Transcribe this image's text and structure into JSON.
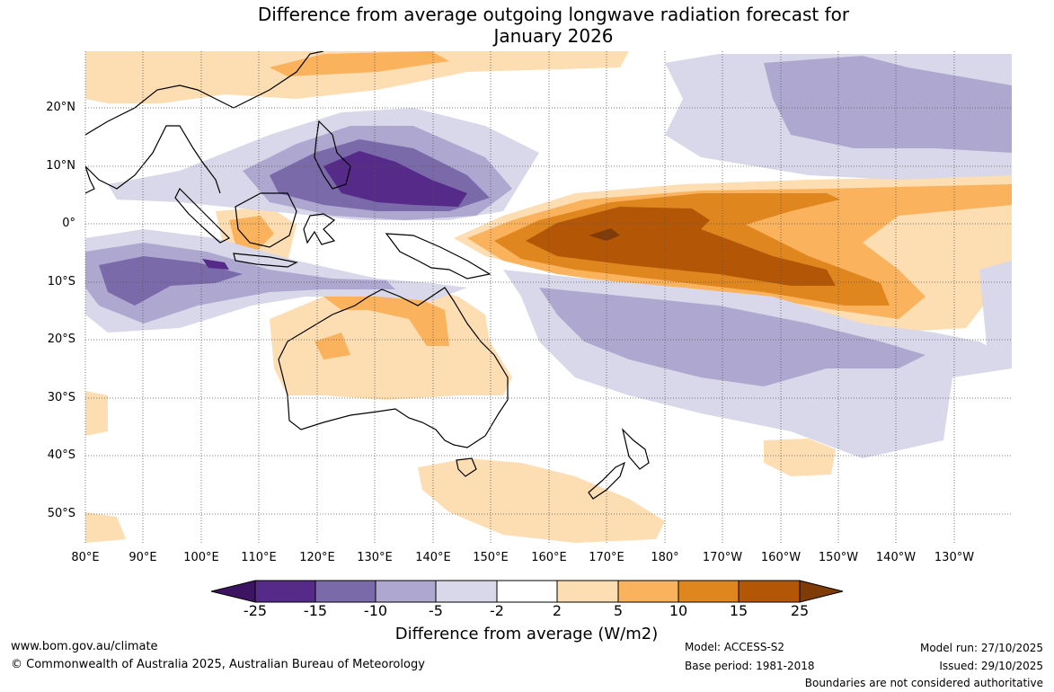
{
  "title": {
    "line1": "Difference from average outgoing longwave radiation forecast for",
    "line2": "January 2026"
  },
  "map": {
    "lat_labels": [
      "20°N",
      "10°N",
      "0°",
      "10°S",
      "20°S",
      "30°S",
      "40°S",
      "50°S"
    ],
    "lon_labels": [
      "80°E",
      "90°E",
      "100°E",
      "110°E",
      "120°E",
      "130°E",
      "140°E",
      "150°E",
      "160°E",
      "170°E",
      "180°",
      "170°W",
      "160°W",
      "150°W",
      "140°W",
      "130°W"
    ]
  },
  "colorbar": {
    "ticks": [
      "-25",
      "-15",
      "-10",
      "-5",
      "-2",
      "2",
      "5",
      "10",
      "15",
      "25"
    ],
    "title": "Difference from average (W/m2)",
    "colors": {
      "lt_minus25": "#3d1462",
      "minus25_minus15": "#552a88",
      "minus15_minus10": "#7b6aaa",
      "minus10_minus5": "#aea8d0",
      "minus5_minus2": "#d8d8ea",
      "neutral": "#ffffff",
      "p2_p5": "#fdddb2",
      "p5_p10": "#fbb25c",
      "p10_p15": "#e0861f",
      "p15_p25": "#b35707",
      "gt_25": "#7f3b08"
    }
  },
  "footer": {
    "website": "www.bom.gov.au/climate",
    "copyright": "© Commonwealth of Australia 2025, Australian Bureau of Meteorology",
    "model": "Model: ACCESS-S2",
    "base_period": "Base period: 1981-2018",
    "model_run": "Model run: 27/10/2025",
    "issued": "Issued: 29/10/2025",
    "disclaimer": "Boundaries are not considered authoritative"
  }
}
